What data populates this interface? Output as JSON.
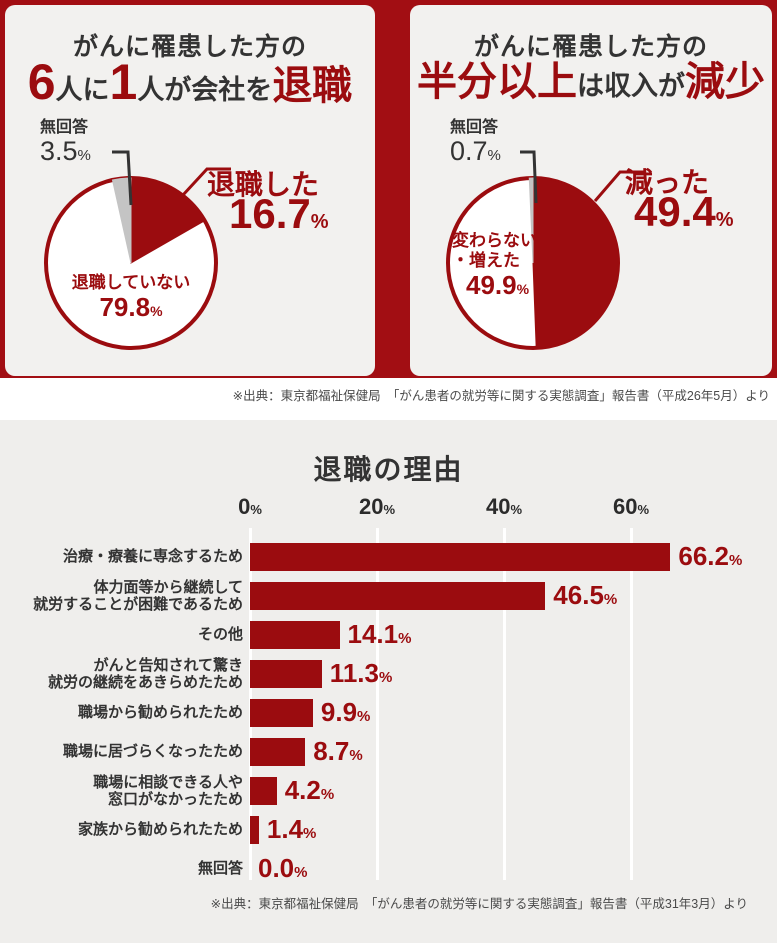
{
  "pct": "%",
  "colors": {
    "accent_red": "#9B0C0F",
    "background_red": "#A20E13",
    "dark_text": "#333333",
    "gray_slice": "#C4C4C4",
    "card_bg": "#F2F1EF",
    "panel_bg": "#EFEEEC",
    "source_text": "#4A4A4A",
    "gridline_white": "#FFFFFF"
  },
  "cards": [
    {
      "title_line1": "がんに罹患した方の",
      "headline_segments": [
        {
          "text": "6",
          "style": "num"
        },
        {
          "text": "人に",
          "style": "plain"
        },
        {
          "text": "1",
          "style": "num"
        },
        {
          "text": "人が会社を",
          "style": "plain"
        },
        {
          "text": "退職",
          "style": "emph"
        }
      ],
      "pie": {
        "side_label": "無回答",
        "side_value": "3.5",
        "callout_label": "退職した",
        "callout_value": "16.7",
        "inner_line1": "退職していない",
        "inner_line2": "",
        "inner_value": "79.8"
      }
    },
    {
      "title_line1": "がんに罹患した方の",
      "headline_segments": [
        {
          "text": "半分以上",
          "style": "emph"
        },
        {
          "text": "は収入が",
          "style": "plain"
        },
        {
          "text": "減少",
          "style": "emph"
        }
      ],
      "pie": {
        "side_label": "無回答",
        "side_value": "0.7",
        "callout_label": "減った",
        "callout_value": "49.4",
        "inner_line1": "変わらない",
        "inner_line2": "・増えた",
        "inner_value": "49.9"
      }
    }
  ],
  "sources": {
    "top": "※出典：東京都福祉保健局　「がん患者の就労等に関する実態調査」報告書（平成26年5月）より",
    "bottom": "※出典：東京都福祉保健局　「がん患者の就労等に関する実態調査」報告書（平成31年3月）より"
  },
  "bar_section": {
    "title": "退職の理由"
  },
  "chart_data": [
    {
      "type": "pie",
      "title": "がんに罹患した方の6人に1人が会社を退職",
      "labels": [
        "退職した",
        "退職していない",
        "無回答"
      ],
      "values": [
        16.7,
        79.8,
        3.5
      ],
      "colors": [
        "#9B0C0F",
        "#FFFFFF",
        "#C4C4C4"
      ],
      "start_angle_deg": 0,
      "direction": "clockwise",
      "ring_color": "#9B0C0F"
    },
    {
      "type": "pie",
      "title": "がんに罹患した方の半分以上は収入が減少",
      "labels": [
        "減った",
        "変わらない・増えた",
        "無回答"
      ],
      "values": [
        49.4,
        49.9,
        0.7
      ],
      "colors": [
        "#9B0C0F",
        "#FFFFFF",
        "#C4C4C4"
      ],
      "start_angle_deg": 0,
      "direction": "clockwise",
      "ring_color": "#9B0C0F"
    },
    {
      "type": "bar",
      "title": "退職の理由",
      "orientation": "horizontal",
      "categories": [
        [
          "治療・療養に専念するため"
        ],
        [
          "体力面等から継続して",
          "就労することが困難であるため"
        ],
        [
          "その他"
        ],
        [
          "がんと告知されて驚き",
          "就労の継続をあきらめたため"
        ],
        [
          "職場から勧められたため"
        ],
        [
          "職場に居づらくなったため"
        ],
        [
          "職場に相談できる人や",
          "窓口がなかったため"
        ],
        [
          "家族から勧められたため"
        ],
        [
          "無回答"
        ]
      ],
      "values": [
        66.2,
        46.5,
        14.1,
        11.3,
        9.9,
        8.7,
        4.2,
        1.4,
        0.0
      ],
      "xticks": [
        0,
        20,
        40,
        60
      ],
      "xlim": [
        0,
        70
      ],
      "grid": true,
      "bar_color": "#9B0C0F"
    }
  ]
}
